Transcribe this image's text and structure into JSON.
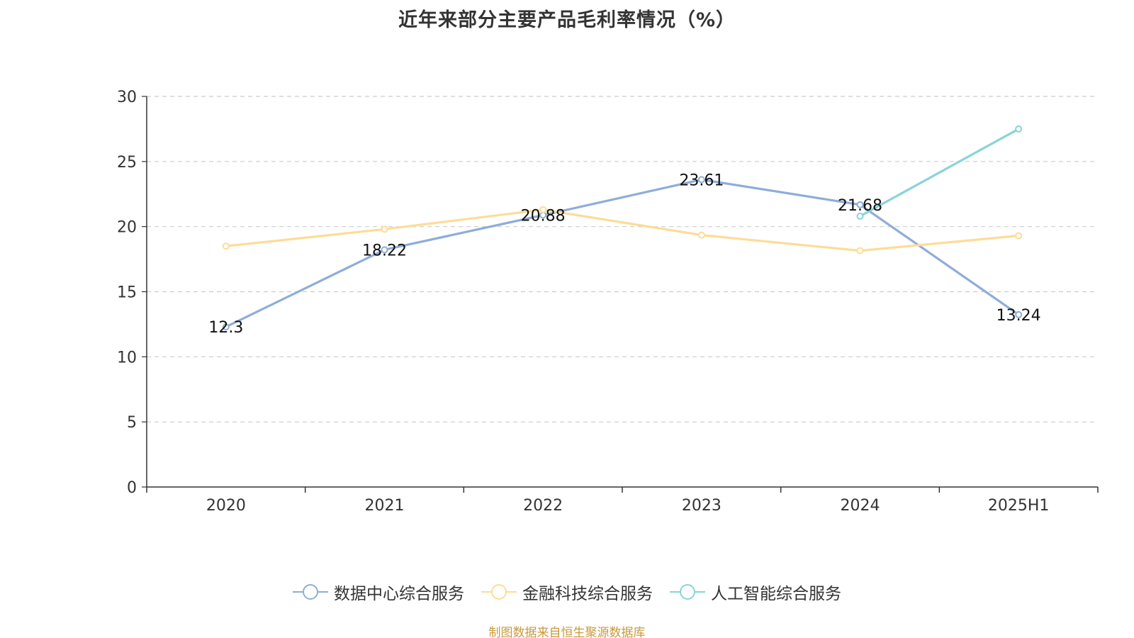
{
  "chart_data": {
    "type": "line",
    "title": "近年来部分主要产品毛利率情况（%）",
    "categories": [
      "2020",
      "2021",
      "2022",
      "2023",
      "2024",
      "2025H1"
    ],
    "ylim": [
      0,
      30
    ],
    "yticks": [
      0,
      5,
      10,
      15,
      20,
      25,
      30
    ],
    "grid": true,
    "legend_position": "bottom",
    "series": [
      {
        "name": "数据中心综合服务",
        "color": "#8eadd8",
        "values": [
          12.3,
          18.22,
          20.88,
          23.61,
          21.68,
          13.24
        ],
        "labels": [
          "12.3",
          "18.22",
          "20.88",
          "23.61",
          "21.68",
          "13.24"
        ]
      },
      {
        "name": "金融科技综合服务",
        "color": "#fddc97",
        "values": [
          18.5,
          19.8,
          21.3,
          19.35,
          18.15,
          19.3
        ],
        "labels": null
      },
      {
        "name": "人工智能综合服务",
        "color": "#88d4d9",
        "values": [
          null,
          null,
          null,
          null,
          20.8,
          27.5
        ],
        "labels": null
      }
    ]
  },
  "source_note": {
    "text": "制图数据来自恒生聚源数据库",
    "color": "#c79a3a"
  }
}
